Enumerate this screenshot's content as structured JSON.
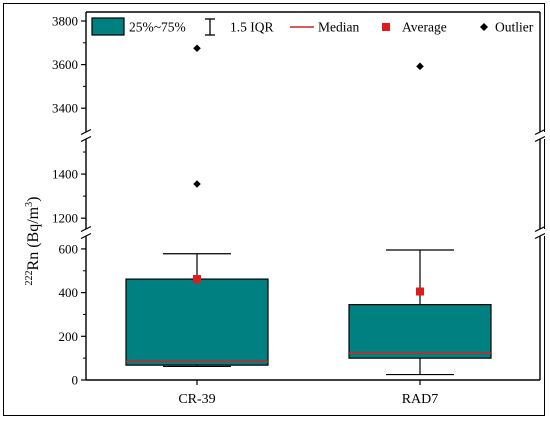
{
  "chart_data": {
    "type": "box",
    "title": "",
    "xlabel": "",
    "ylabel": {
      "superscript": "222",
      "main": "Rn (Bq/m",
      "unit_sup": "3",
      "close": ")"
    },
    "y_axis": {
      "broken": true,
      "segments": [
        {
          "range": [
            0,
            650
          ],
          "ticks": [
            0,
            200,
            400,
            600
          ]
        },
        {
          "range": [
            1160,
            1550
          ],
          "ticks": [
            1200,
            1400
          ]
        },
        {
          "range": [
            3300,
            3800
          ],
          "ticks": [
            3400,
            3600,
            3800
          ]
        }
      ]
    },
    "categories": [
      "CR-39",
      "RAD7"
    ],
    "boxes": [
      {
        "category": "CR-39",
        "q1": 68,
        "median": 85,
        "q3": 462,
        "whisker_low": 62,
        "whisker_high": 578,
        "mean": 462,
        "outliers": [
          1355,
          3675
        ]
      },
      {
        "category": "RAD7",
        "q1": 100,
        "median": 122,
        "q3": 345,
        "whisker_low": 25,
        "whisker_high": 595,
        "mean": 405,
        "outliers": [
          3592
        ]
      }
    ],
    "legend": {
      "placement": "top",
      "entries": [
        {
          "key": "box",
          "label": "25%~75%"
        },
        {
          "key": "iqr",
          "label": "1.5 IQR"
        },
        {
          "key": "median",
          "label": "Median"
        },
        {
          "key": "average",
          "label": "Average"
        },
        {
          "key": "outlier",
          "label": "Outlier"
        }
      ]
    },
    "colors": {
      "box_fill": "#008080",
      "median": "#d42020",
      "average": "#e01b1b",
      "outlier": "#000000",
      "axis": "#000000"
    }
  }
}
